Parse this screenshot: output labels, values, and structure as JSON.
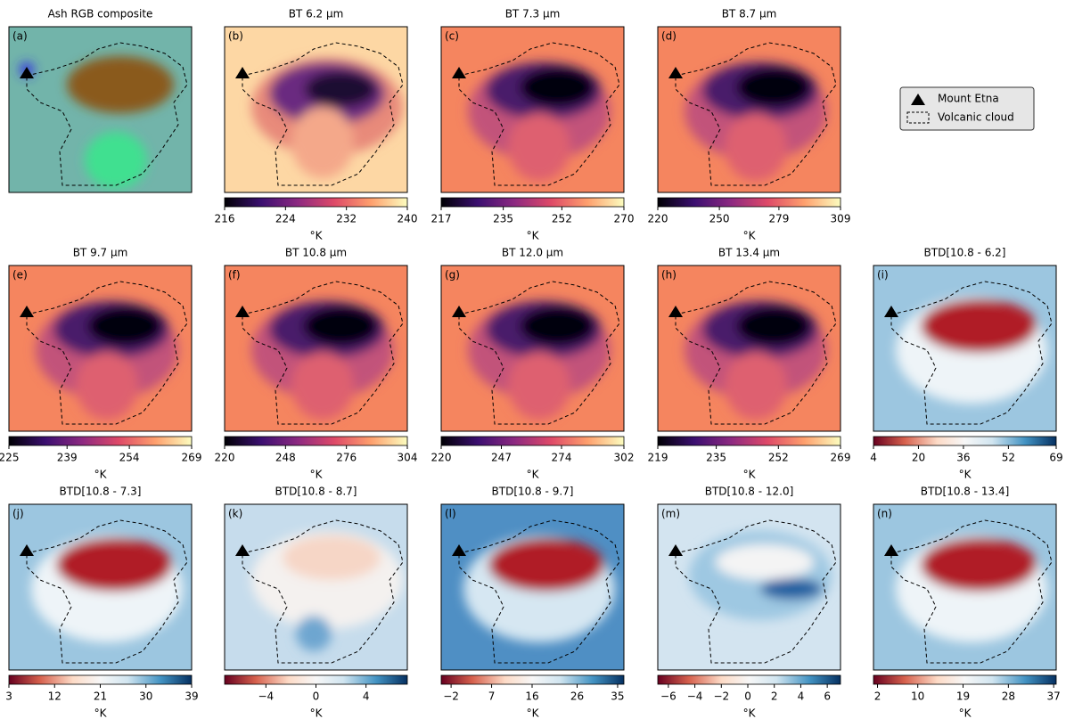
{
  "chart_data": {
    "type": "image-grid",
    "panels": [
      {
        "label": "(a)",
        "title": "Ash RGB composite",
        "cmap": "rgb"
      },
      {
        "label": "(b)",
        "title": "BT 6.2 μm",
        "cmap": "magma",
        "clim": [
          216,
          240
        ],
        "ticks": [
          216,
          224,
          232,
          240
        ],
        "unit": "°K"
      },
      {
        "label": "(c)",
        "title": "BT 7.3 μm",
        "cmap": "magma",
        "clim": [
          217,
          270
        ],
        "ticks": [
          217,
          235,
          252,
          270
        ],
        "unit": "°K"
      },
      {
        "label": "(d)",
        "title": "BT 8.7 μm",
        "cmap": "magma",
        "clim": [
          220,
          309
        ],
        "ticks": [
          220,
          250,
          279,
          309
        ],
        "unit": "°K"
      },
      {
        "label": "(e)",
        "title": "BT 9.7 μm",
        "cmap": "magma",
        "clim": [
          225,
          269
        ],
        "ticks": [
          225,
          239,
          254,
          269
        ],
        "unit": "°K"
      },
      {
        "label": "(f)",
        "title": "BT 10.8 μm",
        "cmap": "magma",
        "clim": [
          220,
          304
        ],
        "ticks": [
          220,
          248,
          276,
          304
        ],
        "unit": "°K"
      },
      {
        "label": "(g)",
        "title": "BT 12.0 μm",
        "cmap": "magma",
        "clim": [
          220,
          302
        ],
        "ticks": [
          220,
          247,
          274,
          302
        ],
        "unit": "°K"
      },
      {
        "label": "(h)",
        "title": "BT 13.4 μm",
        "cmap": "magma",
        "clim": [
          219,
          269
        ],
        "ticks": [
          219,
          235,
          252,
          269
        ],
        "unit": "°K"
      },
      {
        "label": "(i)",
        "title": "BTD[10.8 - 6.2]",
        "cmap": "RdBu",
        "clim": [
          4,
          69
        ],
        "ticks": [
          4,
          20,
          36,
          52,
          69
        ],
        "unit": "°K"
      },
      {
        "label": "(j)",
        "title": "BTD[10.8 - 7.3]",
        "cmap": "RdBu",
        "clim": [
          3,
          39
        ],
        "ticks": [
          3,
          12,
          21,
          30,
          39
        ],
        "unit": "°K"
      },
      {
        "label": "(k)",
        "title": "BTD[10.8 - 8.7]",
        "cmap": "RdBu",
        "clim": [
          -7.3,
          7.3
        ],
        "ticks": [
          {
            "value": -4,
            "label": "−4"
          },
          0,
          4
        ],
        "unit": "°K"
      },
      {
        "label": "(l)",
        "title": "BTD[10.8 - 9.7]",
        "cmap": "RdBu",
        "clim": [
          -4.2,
          36.4
        ],
        "ticks": [
          {
            "value": -2,
            "label": "−2"
          },
          7,
          16,
          26,
          35
        ],
        "unit": "°K"
      },
      {
        "label": "(m)",
        "title": "BTD[10.8 - 12.0]",
        "cmap": "RdBu",
        "clim": [
          -6.8,
          7
        ],
        "ticks": [
          {
            "value": -6,
            "label": "−6"
          },
          {
            "value": -4,
            "label": "−4"
          },
          {
            "value": -2,
            "label": "−2"
          },
          0,
          2,
          4,
          6
        ],
        "unit": "°K"
      },
      {
        "label": "(n)",
        "title": "BTD[10.8 - 13.4]",
        "cmap": "RdBu",
        "clim": [
          1.2,
          37.5
        ],
        "ticks": [
          2,
          10,
          19,
          28,
          37
        ],
        "unit": "°K"
      }
    ],
    "legend": [
      "Mount Etna",
      "Volcanic cloud"
    ]
  }
}
